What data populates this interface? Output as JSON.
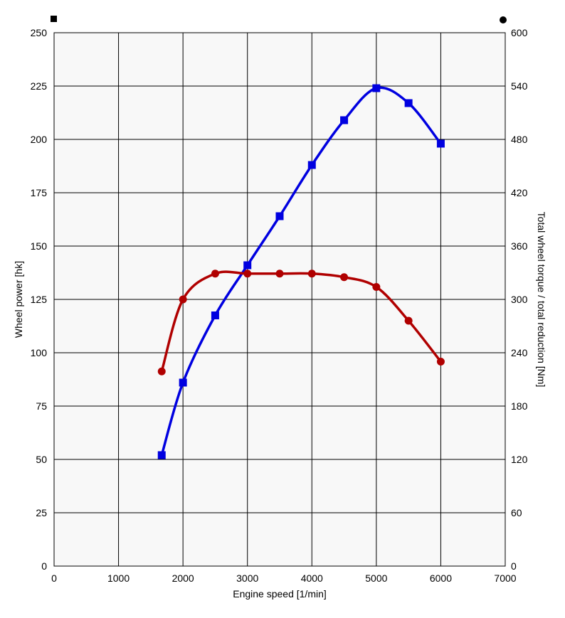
{
  "chart_data": {
    "type": "line",
    "xlabel": "Engine speed [1/min]",
    "ylabel_left": "Wheel power [hk]",
    "ylabel_right": "Total wheel torque / total reduction [Nm]",
    "xlim": [
      0,
      7000
    ],
    "ylim_left": [
      0,
      250
    ],
    "ylim_right": [
      0,
      600
    ],
    "x_ticks": [
      0,
      1000,
      2000,
      3000,
      4000,
      5000,
      6000,
      7000
    ],
    "y_ticks_left": [
      0,
      25,
      50,
      75,
      100,
      125,
      150,
      175,
      200,
      225,
      250
    ],
    "y_ticks_right": [
      0,
      60,
      120,
      180,
      240,
      300,
      360,
      420,
      480,
      540,
      600
    ],
    "grid": true,
    "background": "#f8f8f8",
    "series": [
      {
        "axis": "left",
        "color": "#0000e0",
        "marker": "square",
        "x": [
          1670,
          2000,
          2500,
          3000,
          3500,
          4000,
          4500,
          5000,
          5500,
          6000
        ],
        "y": [
          52,
          86,
          117.5,
          141,
          164,
          188,
          209,
          224,
          217,
          198
        ]
      },
      {
        "axis": "right",
        "color": "#b00000",
        "marker": "circle",
        "x": [
          1670,
          2000,
          2500,
          3000,
          3500,
          4000,
          4500,
          5000,
          5500,
          6000
        ],
        "y": [
          219,
          300,
          329,
          329,
          329,
          329,
          325,
          314,
          276,
          230
        ]
      }
    ]
  }
}
